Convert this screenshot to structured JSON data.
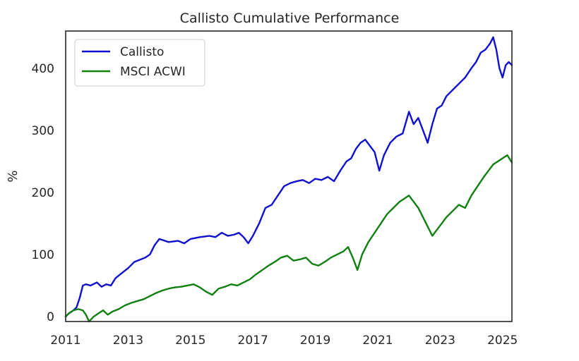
{
  "chart_data": {
    "type": "line",
    "title": "Callisto Cumulative Performance",
    "xlabel": "",
    "ylabel": "%",
    "xlim": [
      2011.0,
      2025.3
    ],
    "ylim": [
      -8,
      460
    ],
    "x_ticks": [
      2011,
      2013,
      2015,
      2017,
      2019,
      2021,
      2023,
      2025
    ],
    "x_tick_labels": [
      "2011",
      "2013",
      "2015",
      "2017",
      "2019",
      "2021",
      "2023",
      "2025"
    ],
    "y_ticks": [
      0,
      100,
      200,
      300,
      400
    ],
    "y_tick_labels": [
      "0",
      "100",
      "200",
      "300",
      "400"
    ],
    "grid": false,
    "legend_position": "top-left",
    "series": [
      {
        "name": "Callisto",
        "color": "#1010d0",
        "x": [
          2011.0,
          2011.1,
          2011.25,
          2011.35,
          2011.45,
          2011.55,
          2011.65,
          2011.8,
          2012.0,
          2012.15,
          2012.3,
          2012.45,
          2012.6,
          2012.8,
          2013.0,
          2013.2,
          2013.4,
          2013.55,
          2013.7,
          2013.85,
          2014.0,
          2014.3,
          2014.6,
          2014.8,
          2015.0,
          2015.3,
          2015.6,
          2015.8,
          2016.0,
          2016.2,
          2016.4,
          2016.55,
          2016.7,
          2016.85,
          2017.0,
          2017.2,
          2017.4,
          2017.6,
          2017.8,
          2018.0,
          2018.2,
          2018.4,
          2018.6,
          2018.8,
          2019.0,
          2019.2,
          2019.4,
          2019.6,
          2019.8,
          2020.0,
          2020.15,
          2020.3,
          2020.45,
          2020.6,
          2020.75,
          2020.9,
          2021.05,
          2021.2,
          2021.4,
          2021.6,
          2021.8,
          2022.0,
          2022.15,
          2022.3,
          2022.45,
          2022.6,
          2022.75,
          2022.9,
          2023.05,
          2023.2,
          2023.4,
          2023.6,
          2023.8,
          2024.0,
          2024.15,
          2024.3,
          2024.45,
          2024.6,
          2024.7,
          2024.8,
          2024.9,
          2025.0,
          2025.1,
          2025.2,
          2025.3
        ],
        "y": [
          0,
          5,
          10,
          15,
          30,
          50,
          52,
          50,
          55,
          48,
          52,
          50,
          62,
          70,
          78,
          88,
          92,
          95,
          100,
          115,
          125,
          120,
          122,
          118,
          125,
          128,
          130,
          128,
          135,
          130,
          132,
          135,
          128,
          118,
          130,
          150,
          175,
          180,
          195,
          210,
          215,
          218,
          220,
          215,
          222,
          220,
          225,
          218,
          235,
          250,
          255,
          270,
          280,
          285,
          275,
          265,
          235,
          260,
          280,
          290,
          295,
          330,
          310,
          320,
          300,
          280,
          310,
          335,
          340,
          355,
          365,
          375,
          385,
          400,
          410,
          425,
          430,
          440,
          450,
          430,
          400,
          385,
          405,
          410,
          405
        ],
        "end_note": ""
      },
      {
        "name": "MSCI ACWI",
        "color": "#108010",
        "x": [
          2011.0,
          2011.1,
          2011.25,
          2011.4,
          2011.55,
          2011.65,
          2011.75,
          2011.9,
          2012.05,
          2012.2,
          2012.35,
          2012.5,
          2012.7,
          2012.9,
          2013.1,
          2013.3,
          2013.5,
          2013.7,
          2013.9,
          2014.1,
          2014.3,
          2014.5,
          2014.7,
          2014.9,
          2015.1,
          2015.3,
          2015.5,
          2015.7,
          2015.9,
          2016.1,
          2016.3,
          2016.5,
          2016.7,
          2016.9,
          2017.1,
          2017.3,
          2017.5,
          2017.7,
          2017.9,
          2018.1,
          2018.3,
          2018.5,
          2018.7,
          2018.9,
          2019.1,
          2019.3,
          2019.5,
          2019.7,
          2019.9,
          2020.05,
          2020.2,
          2020.35,
          2020.5,
          2020.7,
          2020.9,
          2021.1,
          2021.3,
          2021.5,
          2021.7,
          2021.85,
          2022.0,
          2022.15,
          2022.3,
          2022.45,
          2022.6,
          2022.75,
          2022.9,
          2023.05,
          2023.2,
          2023.4,
          2023.6,
          2023.8,
          2024.0,
          2024.2,
          2024.4,
          2024.55,
          2024.7,
          2024.85,
          2025.0,
          2025.15,
          2025.3
        ],
        "y": [
          0,
          5,
          10,
          12,
          10,
          3,
          -8,
          0,
          5,
          10,
          3,
          8,
          12,
          18,
          22,
          25,
          28,
          33,
          38,
          42,
          45,
          47,
          48,
          50,
          52,
          47,
          40,
          35,
          45,
          48,
          52,
          50,
          55,
          60,
          68,
          75,
          82,
          88,
          95,
          98,
          90,
          92,
          95,
          85,
          82,
          88,
          95,
          100,
          105,
          112,
          95,
          75,
          100,
          120,
          135,
          150,
          165,
          175,
          185,
          190,
          195,
          185,
          175,
          160,
          145,
          130,
          140,
          150,
          160,
          170,
          180,
          175,
          195,
          210,
          225,
          235,
          245,
          250,
          255,
          260,
          248
        ],
        "end_note": ""
      }
    ]
  }
}
